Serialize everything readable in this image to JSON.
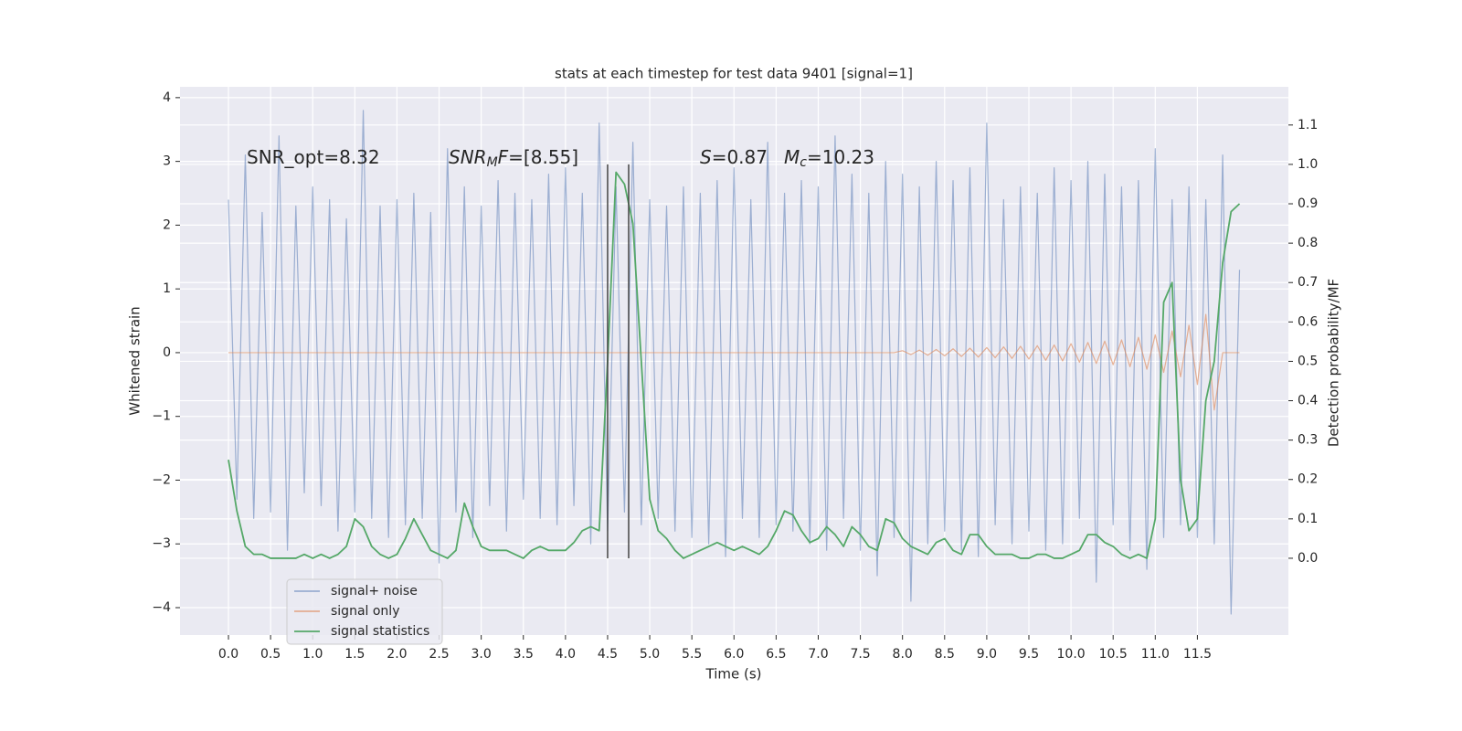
{
  "chart_data": {
    "type": "line",
    "title": "stats at each timestep for test data 9401 [signal=1]",
    "xlabel": "Time (s)",
    "ylabel": "Whitened strain",
    "y2label": "Detection probability/MF",
    "grid": true,
    "background": "#eaeaf2",
    "legend": "lower left",
    "xlim": [
      -0.575,
      12.58
    ],
    "ylim": [
      -4.43,
      4.17
    ],
    "y2lim": [
      -0.195,
      1.197
    ],
    "xticks": [
      {
        "value": 0,
        "label": "0.0"
      },
      0.5,
      {
        "value": 1,
        "label": "1.0"
      },
      1.5,
      {
        "value": 2,
        "label": "2.0"
      },
      2.5,
      {
        "value": 3,
        "label": "3.0"
      },
      3.5,
      {
        "value": 4,
        "label": "4.0"
      },
      4.5,
      {
        "value": 5,
        "label": "5.0"
      },
      5.5,
      {
        "value": 6,
        "label": "6.0"
      },
      6.5,
      {
        "value": 7,
        "label": "7.0"
      },
      7.5,
      {
        "value": 8,
        "label": "8.0"
      },
      8.5,
      {
        "value": 9,
        "label": "9.0"
      },
      9.5,
      {
        "value": 10,
        "label": "10.0"
      },
      10.5,
      {
        "value": 11,
        "label": "11.0"
      },
      11.5
    ],
    "yticks": [
      {
        "value": -4,
        "label": "−4"
      },
      {
        "value": -3,
        "label": "−3"
      },
      {
        "value": -2,
        "label": "−2"
      },
      {
        "value": -1,
        "label": "−1"
      },
      0,
      1,
      2,
      3,
      4
    ],
    "y2ticks": [
      {
        "value": 0,
        "label": "0.0"
      },
      0.1,
      0.2,
      0.3,
      0.4,
      0.5,
      0.6,
      0.7,
      0.8,
      0.9,
      {
        "value": 1,
        "label": "1.0"
      },
      1.1
    ],
    "x": [
      0,
      0.1,
      0.2,
      0.3,
      0.4,
      0.5,
      0.6,
      0.7,
      0.8,
      0.9,
      1,
      1.1,
      1.2,
      1.3,
      1.4,
      1.5,
      1.6,
      1.7,
      1.8,
      1.9,
      2,
      2.1,
      2.2,
      2.3,
      2.4,
      2.5,
      2.6,
      2.7,
      2.8,
      2.9,
      3,
      3.1,
      3.2,
      3.3,
      3.4,
      3.5,
      3.6,
      3.7,
      3.8,
      3.9,
      4,
      4.1,
      4.2,
      4.3,
      4.4,
      4.5,
      4.6,
      4.7,
      4.8,
      4.9,
      5,
      5.1,
      5.2,
      5.3,
      5.4,
      5.5,
      5.6,
      5.7,
      5.8,
      5.9,
      6,
      6.1,
      6.2,
      6.3,
      6.4,
      6.5,
      6.6,
      6.7,
      6.8,
      6.9,
      7,
      7.1,
      7.2,
      7.3,
      7.4,
      7.5,
      7.6,
      7.7,
      7.8,
      7.9,
      8,
      8.1,
      8.2,
      8.3,
      8.4,
      8.5,
      8.6,
      8.7,
      8.8,
      8.9,
      9,
      9.1,
      9.2,
      9.3,
      9.4,
      9.5,
      9.6,
      9.7,
      9.8,
      9.9,
      10,
      10.1,
      10.2,
      10.3,
      10.4,
      10.5,
      10.6,
      10.7,
      10.8,
      10.9,
      11,
      11.1,
      11.2,
      11.3,
      11.4,
      11.5,
      11.6,
      11.7,
      11.8,
      11.9,
      12
    ],
    "series": [
      {
        "name": "signal+ noise",
        "color": "#4c72b0",
        "opacity": 0.5,
        "values": [
          2.4,
          -2.3,
          3.1,
          -2.6,
          2.2,
          -2.5,
          3.4,
          -3.1,
          2.3,
          -2.2,
          2.6,
          -2.4,
          2.4,
          -2.8,
          2.1,
          -2.5,
          3.8,
          -2.6,
          2.3,
          -2.9,
          2.4,
          -2.7,
          2.5,
          -2.6,
          2.2,
          -3.3,
          3.2,
          -2.5,
          2.6,
          -2.9,
          2.3,
          -2.4,
          2.7,
          -2.8,
          2.5,
          -2.3,
          2.4,
          -2.6,
          2.8,
          -2.7,
          2.9,
          -2.4,
          2.5,
          -3.0,
          3.6,
          -2.8,
          2.6,
          -2.5,
          3.3,
          -2.7,
          2.4,
          -2.6,
          2.3,
          -2.8,
          2.6,
          -2.9,
          2.5,
          -3.0,
          2.7,
          -3.2,
          2.9,
          -2.6,
          2.4,
          -2.9,
          3.3,
          -2.7,
          2.5,
          -2.8,
          2.7,
          -3.0,
          2.6,
          -3.1,
          3.4,
          -2.6,
          2.8,
          -3.1,
          2.5,
          -3.5,
          3.0,
          -2.9,
          2.8,
          -3.9,
          2.6,
          -3.0,
          3.0,
          -2.8,
          2.7,
          -3.1,
          2.9,
          -3.2,
          3.6,
          -2.7,
          2.4,
          -3.0,
          2.6,
          -2.8,
          2.5,
          -3.1,
          2.9,
          -3.0,
          2.7,
          -2.6,
          3.0,
          -3.6,
          2.8,
          -2.7,
          2.6,
          -3.1,
          2.7,
          -3.4,
          3.2,
          -2.9,
          2.4,
          -2.7,
          2.6,
          -2.9,
          2.4,
          -3.0,
          3.1,
          -4.1,
          1.3
        ]
      },
      {
        "name": "signal only",
        "color": "#dd8452",
        "opacity": 0.6,
        "values": [
          0,
          0,
          0,
          0,
          0,
          0,
          0,
          0,
          0,
          0,
          0,
          0,
          0,
          0,
          0,
          0,
          0,
          0,
          0,
          0,
          0,
          0,
          0,
          0,
          0,
          0,
          0,
          0,
          0,
          0,
          0,
          0,
          0,
          0,
          0,
          0,
          0,
          0,
          0,
          0,
          0,
          0,
          0,
          0,
          0,
          0,
          0,
          0,
          0,
          0,
          0,
          0,
          0,
          0,
          0,
          0,
          0,
          0,
          0,
          0,
          0,
          0,
          0,
          0,
          0,
          0,
          0,
          0,
          0,
          0,
          0,
          0,
          0,
          0,
          0,
          0,
          0,
          0,
          0,
          0,
          0.03,
          -0.03,
          0.04,
          -0.04,
          0.05,
          -0.05,
          0.06,
          -0.06,
          0.07,
          -0.07,
          0.08,
          -0.08,
          0.09,
          -0.09,
          0.1,
          -0.1,
          0.11,
          -0.12,
          0.12,
          -0.13,
          0.14,
          -0.15,
          0.16,
          -0.17,
          0.18,
          -0.19,
          0.2,
          -0.22,
          0.24,
          -0.26,
          0.28,
          -0.31,
          0.34,
          -0.38,
          0.43,
          -0.5,
          0.6,
          -0.9,
          0,
          0,
          0
        ]
      },
      {
        "name": "signal statistics",
        "color": "#55a868",
        "opacity": 1,
        "axis": "y2",
        "values": [
          0.25,
          0.12,
          0.03,
          0.01,
          0.01,
          0,
          0,
          0,
          0,
          0.01,
          0,
          0.01,
          0,
          0.01,
          0.03,
          0.1,
          0.08,
          0.03,
          0.01,
          0,
          0.01,
          0.05,
          0.1,
          0.06,
          0.02,
          0.01,
          0,
          0.02,
          0.14,
          0.08,
          0.03,
          0.02,
          0.02,
          0.02,
          0.01,
          0,
          0.02,
          0.03,
          0.02,
          0.02,
          0.02,
          0.04,
          0.07,
          0.08,
          0.07,
          0.5,
          0.98,
          0.95,
          0.85,
          0.5,
          0.15,
          0.07,
          0.05,
          0.02,
          0,
          0.01,
          0.02,
          0.03,
          0.04,
          0.03,
          0.02,
          0.03,
          0.02,
          0.01,
          0.03,
          0.07,
          0.12,
          0.11,
          0.07,
          0.04,
          0.05,
          0.08,
          0.06,
          0.03,
          0.08,
          0.06,
          0.03,
          0.02,
          0.1,
          0.09,
          0.05,
          0.03,
          0.02,
          0.01,
          0.04,
          0.05,
          0.02,
          0.01,
          0.06,
          0.06,
          0.03,
          0.01,
          0.01,
          0.01,
          0,
          0,
          0.01,
          0.01,
          0,
          0,
          0.01,
          0.02,
          0.06,
          0.06,
          0.04,
          0.03,
          0.01,
          0,
          0.01,
          0,
          0.1,
          0.65,
          0.7,
          0.2,
          0.07,
          0.1,
          0.4,
          0.5,
          0.75,
          0.88,
          0.9
        ]
      }
    ],
    "vlines": {
      "x": [
        4.5,
        4.75
      ],
      "y2range": [
        0,
        1
      ],
      "color": "#444444"
    },
    "annotations": [
      [
        {
          "text": "SNR_opt=8.32"
        }
      ],
      [
        {
          "text": "SNR",
          "italic": true
        },
        {
          "text": "M",
          "italic": true,
          "sub": true
        },
        {
          "text": "F",
          "italic": true
        },
        {
          "text": "=[8.55]"
        }
      ],
      [
        {
          "text": "S",
          "italic": true
        },
        {
          "text": "=0.87"
        }
      ],
      [
        {
          "text": "M",
          "italic": true
        },
        {
          "text": "c",
          "italic": true,
          "sub": true
        },
        {
          "text": "=10.23"
        }
      ]
    ]
  }
}
